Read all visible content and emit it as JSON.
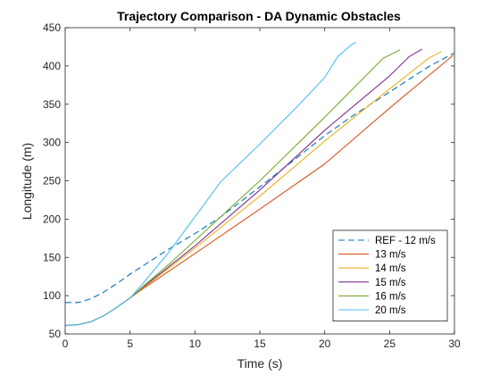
{
  "chart_data": {
    "type": "line",
    "title": "Trajectory Comparison - DA Dynamic Obstacles",
    "xlabel": "Time (s)",
    "ylabel": "Longitude (m)",
    "xlim": [
      0,
      30
    ],
    "ylim": [
      50,
      450
    ],
    "xticks": [
      0,
      5,
      10,
      15,
      20,
      25,
      30
    ],
    "yticks": [
      50,
      100,
      150,
      200,
      250,
      300,
      350,
      400,
      450
    ],
    "grid": false,
    "legend_position": "bottom-right",
    "series": [
      {
        "name": "REF - 12 m/s",
        "color": "#0072BD",
        "style": "dashed",
        "x": [
          0,
          1,
          2,
          3,
          4,
          5,
          6,
          8,
          10,
          12,
          15,
          18,
          20,
          22,
          25,
          28,
          30
        ],
        "y": [
          91,
          91,
          96,
          105,
          116,
          128,
          139,
          161,
          181,
          203,
          242,
          282,
          309,
          333,
          366,
          399,
          417
        ]
      },
      {
        "name": "13 m/s",
        "color": "#D95319",
        "style": "solid",
        "x": [
          0,
          1,
          2,
          3,
          4,
          5,
          6,
          8,
          10,
          15,
          20,
          25,
          29.9
        ],
        "y": [
          61,
          62,
          66,
          74,
          85,
          97,
          109,
          132,
          155,
          213,
          272,
          345,
          414
        ]
      },
      {
        "name": "14 m/s",
        "color": "#EDB120",
        "style": "solid",
        "x": [
          0,
          1,
          2,
          3,
          4,
          5,
          6,
          8,
          10,
          15,
          20,
          25,
          28,
          29
        ],
        "y": [
          61,
          62,
          66,
          74,
          85,
          97,
          110,
          136,
          162,
          230,
          302,
          370,
          410,
          419
        ]
      },
      {
        "name": "15 m/s",
        "color": "#7E2F8E",
        "style": "solid",
        "x": [
          0,
          1,
          2,
          3,
          4,
          5,
          6,
          8,
          10,
          15,
          20,
          25,
          26.5,
          27.5
        ],
        "y": [
          61,
          62,
          66,
          74,
          85,
          97,
          111,
          138,
          165,
          238,
          316,
          387,
          412,
          422
        ]
      },
      {
        "name": "16 m/s",
        "color": "#77AC30",
        "style": "solid",
        "x": [
          0,
          1,
          2,
          3,
          4,
          5,
          6,
          8,
          10,
          15,
          20,
          24.5,
          25.8
        ],
        "y": [
          61,
          62,
          66,
          74,
          85,
          97,
          112,
          141,
          172,
          250,
          333,
          410,
          421
        ]
      },
      {
        "name": "20 m/s",
        "color": "#4DBEEE",
        "style": "solid",
        "x": [
          0,
          1,
          2,
          3,
          4,
          5,
          6,
          8,
          10,
          12,
          15,
          18,
          20,
          21,
          22,
          22.4
        ],
        "y": [
          61,
          62,
          66,
          74,
          85,
          97,
          116,
          157,
          203,
          249,
          298,
          349,
          385,
          412,
          427,
          431
        ]
      }
    ]
  }
}
